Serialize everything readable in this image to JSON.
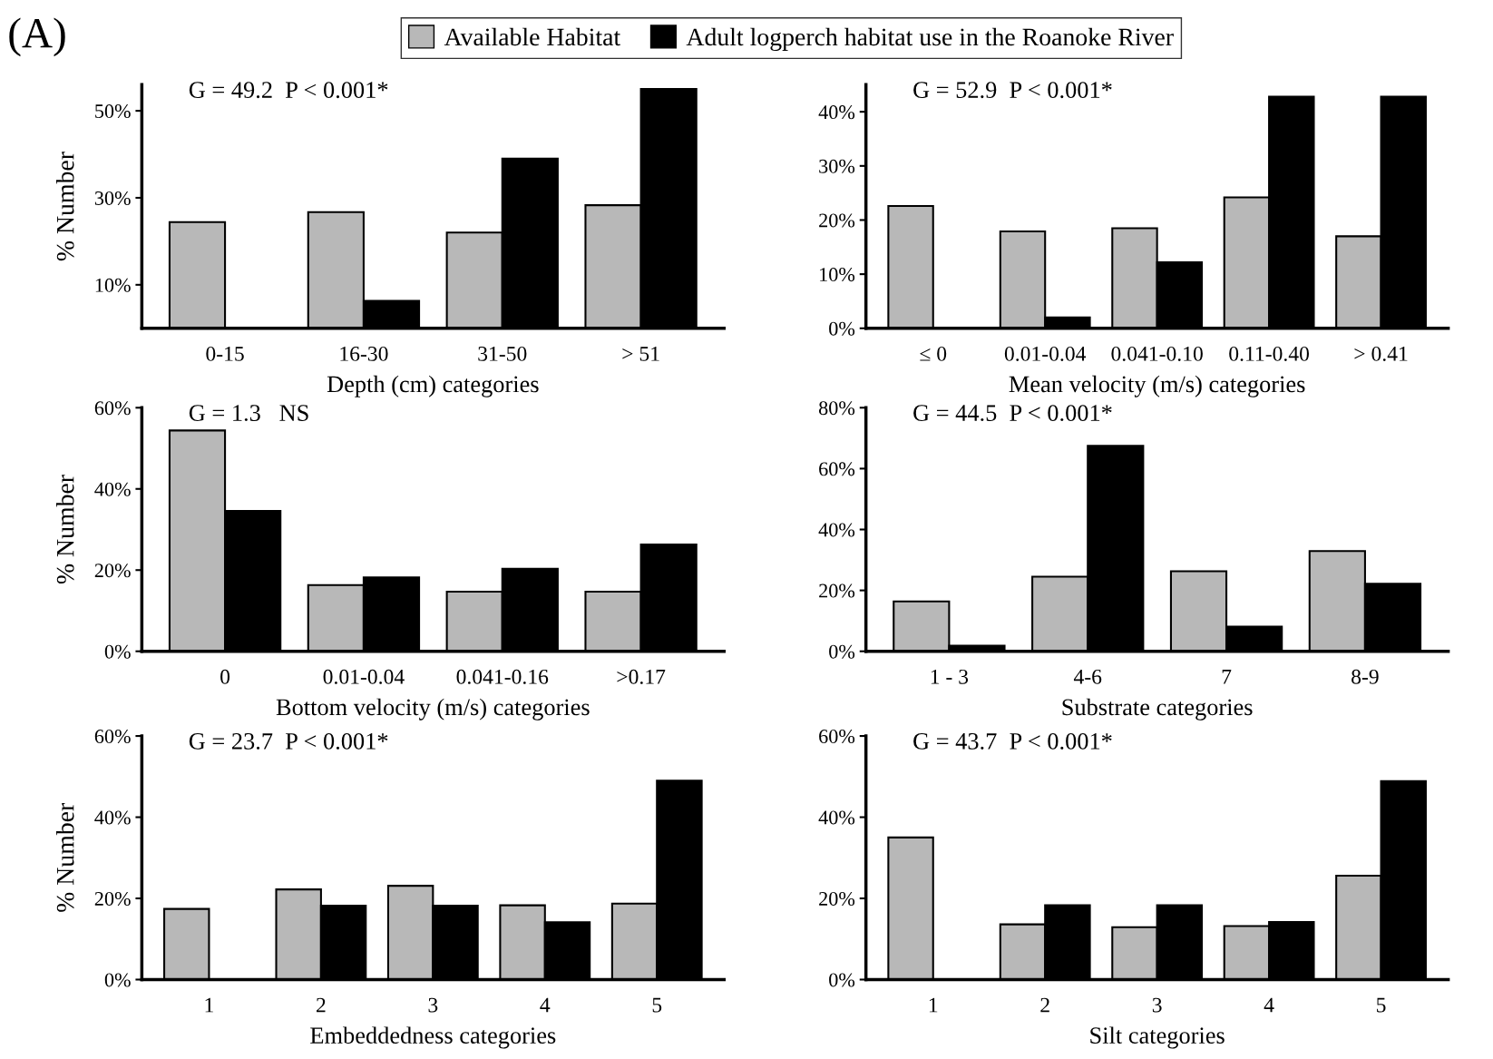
{
  "chart_data": [
    {
      "type": "bar",
      "xlabel": "Depth (cm) categories",
      "ylabel": "% Number",
      "categories": [
        "0-15",
        "16-30",
        "31-50",
        "> 51"
      ],
      "annotations": [
        "(A)",
        "G = 49.2  P < 0.001*"
      ],
      "legend": "top",
      "ylim": [
        0,
        56
      ],
      "yticks": [
        {
          "value": 10,
          "label": "10%"
        },
        {
          "value": 30,
          "label": "30%"
        },
        {
          "value": 50,
          "label": "50%"
        }
      ],
      "grid": false,
      "series": [
        {
          "name": "Available Habitat",
          "color": "#b8b8b8",
          "values": [
            24.4,
            26.7,
            22,
            28.3
          ]
        },
        {
          "name": "Adult logperch habitat use in the Roanoke River",
          "color": "#000000",
          "values": [
            0,
            6.3,
            39,
            55
          ]
        }
      ]
    },
    {
      "type": "bar",
      "xlabel": "Mean velocity (m/s) categories",
      "categories": [
        "≤ 0",
        "0.01-0.04",
        "0.041-0.10",
        "0.11-0.40",
        "> 0.41"
      ],
      "annotations": [
        "G = 52.9  P < 0.001*"
      ],
      "ylim": [
        0,
        45
      ],
      "yticks": [
        {
          "value": 0,
          "label": "0%"
        },
        {
          "value": 10,
          "label": "10%"
        },
        {
          "value": 20,
          "label": "20%"
        },
        {
          "value": 30,
          "label": "30%"
        },
        {
          "value": 40,
          "label": "40%"
        }
      ],
      "grid": false,
      "series": [
        {
          "color": "#b8b8b8",
          "values": [
            22.6,
            17.9,
            18.5,
            24.2,
            17
          ]
        },
        {
          "color": "#000000",
          "values": [
            0,
            2,
            12.2,
            42.8,
            42.8
          ]
        }
      ]
    },
    {
      "type": "bar",
      "xlabel": "Bottom velocity (m/s) categories",
      "ylabel": "% Number",
      "categories": [
        "0",
        "0.01-0.04",
        "0.041-0.16",
        ">0.17"
      ],
      "annotations": [
        "G = 1.3   NS"
      ],
      "ylim": [
        0,
        60
      ],
      "yticks": [
        {
          "value": 0,
          "label": "0%"
        },
        {
          "value": 20,
          "label": "20%"
        },
        {
          "value": 40,
          "label": "40%"
        },
        {
          "value": 60,
          "label": "60%"
        }
      ],
      "grid": false,
      "series": [
        {
          "color": "#b8b8b8",
          "values": [
            54.4,
            16.3,
            14.7,
            14.7
          ]
        },
        {
          "color": "#000000",
          "values": [
            34.6,
            18.2,
            20.3,
            26.3
          ]
        }
      ]
    },
    {
      "type": "bar",
      "xlabel": "Substrate categories",
      "categories": [
        "1 - 3",
        "4-6",
        "7",
        "8-9"
      ],
      "annotations": [
        "G = 44.5  P < 0.001*"
      ],
      "ylim": [
        0,
        80
      ],
      "yticks": [
        {
          "value": 0,
          "label": "0%"
        },
        {
          "value": 20,
          "label": "20%"
        },
        {
          "value": 40,
          "label": "40%"
        },
        {
          "value": 60,
          "label": "60%"
        },
        {
          "value": 80,
          "label": "80%"
        }
      ],
      "grid": false,
      "series": [
        {
          "color": "#b8b8b8",
          "values": [
            16.4,
            24.5,
            26.3,
            32.9
          ]
        },
        {
          "color": "#000000",
          "values": [
            1.8,
            67.5,
            8.1,
            22.2
          ]
        }
      ]
    },
    {
      "type": "bar",
      "xlabel": "Embeddedness categories",
      "ylabel": "% Number",
      "categories": [
        "1",
        "2",
        "3",
        "4",
        "5"
      ],
      "annotations": [
        "G = 23.7  P < 0.001*"
      ],
      "ylim": [
        0,
        60
      ],
      "yticks": [
        {
          "value": 0,
          "label": "0%"
        },
        {
          "value": 20,
          "label": "20%"
        },
        {
          "value": 40,
          "label": "40%"
        },
        {
          "value": 60,
          "label": "60%"
        }
      ],
      "grid": false,
      "series": [
        {
          "color": "#b8b8b8",
          "values": [
            17.4,
            22.2,
            23.1,
            18.3,
            18.7
          ]
        },
        {
          "color": "#000000",
          "values": [
            0,
            18.2,
            18.2,
            14.1,
            49
          ]
        }
      ]
    },
    {
      "type": "bar",
      "xlabel": "Silt categories",
      "categories": [
        "1",
        "2",
        "3",
        "4",
        "5"
      ],
      "annotations": [
        "G = 43.7  P < 0.001*"
      ],
      "ylim": [
        0,
        60
      ],
      "yticks": [
        {
          "value": 0,
          "label": "0%"
        },
        {
          "value": 20,
          "label": "20%"
        },
        {
          "value": 40,
          "label": "40%"
        },
        {
          "value": 60,
          "label": "60%"
        }
      ],
      "grid": false,
      "series": [
        {
          "color": "#b8b8b8",
          "values": [
            35,
            13.6,
            12.9,
            13.2,
            25.6
          ]
        },
        {
          "color": "#000000",
          "values": [
            0,
            18.3,
            18.3,
            14.2,
            48.9
          ]
        }
      ]
    }
  ]
}
